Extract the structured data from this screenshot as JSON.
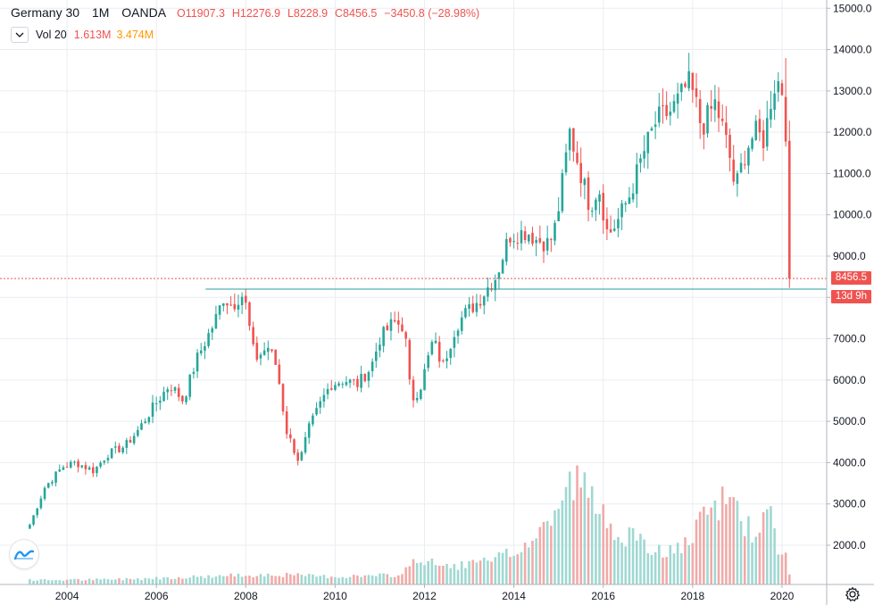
{
  "legend": {
    "symbol": "Germany 30",
    "interval": "1M",
    "source": "OANDA",
    "open": "O11907.3",
    "high": "H12276.9",
    "low": "L8228.9",
    "close": "C8456.5",
    "change": "−3450.8 (−28.98%)"
  },
  "volume_legend": {
    "label": "Vol 20",
    "value": "1.613M",
    "ma": "3.474M"
  },
  "price_tag": "8456.5",
  "countdown_tag": "13d 9h",
  "colors": {
    "up": "#26a69a",
    "down": "#ef5350",
    "up_volume": "#9fd8d2",
    "down_volume": "#f0aaa8",
    "grid": "#eaedf1",
    "support_line": "#2a9d9a"
  },
  "icons": [
    "chevron-down-icon",
    "tradingview-logo-icon",
    "gear-icon"
  ],
  "chart_data": {
    "type": "candlestick",
    "title": "Germany 30 · 1M · OANDA",
    "y_ticks": [
      2000,
      3000,
      4000,
      5000,
      6000,
      7000,
      8000,
      9000,
      10000,
      11000,
      12000,
      13000,
      14000,
      15000
    ],
    "y_tick_labels": [
      "2000.0",
      "3000.0",
      "4000.0",
      "5000.0",
      "6000.0",
      "7000.0",
      "8000.0",
      "9000.0",
      "10000.0",
      "11000.0",
      "12000.0",
      "13000.0",
      "14000.0",
      "15000.0"
    ],
    "x_tick_labels": [
      "2004",
      "2006",
      "2008",
      "2010",
      "2012",
      "2014",
      "2016",
      "2018",
      "2020"
    ],
    "x_tick_years": [
      2004,
      2006,
      2008,
      2010,
      2012,
      2014,
      2016,
      2018,
      2020
    ],
    "ylim": [
      1050,
      15200
    ],
    "xlim": [
      2002.5,
      2021.0
    ],
    "horizontal_line": 8200,
    "last_price": 8456.5,
    "volume_axis_max_million": 23,
    "series_start": [
      2003,
      3
    ],
    "series_end": [
      2020,
      3
    ],
    "close_anchors": [
      [
        2003.17,
        2500
      ],
      [
        2003.5,
        3400
      ],
      [
        2003.9,
        3900
      ],
      [
        2004.2,
        4000
      ],
      [
        2004.6,
        3800
      ],
      [
        2004.9,
        4200
      ],
      [
        2005.3,
        4400
      ],
      [
        2005.6,
        4800
      ],
      [
        2005.9,
        5300
      ],
      [
        2006.3,
        5900
      ],
      [
        2006.45,
        5700
      ],
      [
        2006.6,
        5500
      ],
      [
        2006.9,
        6500
      ],
      [
        2007.3,
        7400
      ],
      [
        2007.5,
        8000
      ],
      [
        2007.7,
        7800
      ],
      [
        2007.9,
        8100
      ],
      [
        2008.0,
        7800
      ],
      [
        2008.2,
        6500
      ],
      [
        2008.5,
        6800
      ],
      [
        2008.7,
        6300
      ],
      [
        2008.9,
        4800
      ],
      [
        2009.2,
        4000
      ],
      [
        2009.4,
        4800
      ],
      [
        2009.7,
        5500
      ],
      [
        2009.9,
        5900
      ],
      [
        2010.2,
        6000
      ],
      [
        2010.5,
        5900
      ],
      [
        2010.8,
        6300
      ],
      [
        2011.0,
        7000
      ],
      [
        2011.3,
        7400
      ],
      [
        2011.55,
        7300
      ],
      [
        2011.7,
        5500
      ],
      [
        2011.9,
        5800
      ],
      [
        2012.2,
        7000
      ],
      [
        2012.4,
        6300
      ],
      [
        2012.7,
        7300
      ],
      [
        2012.9,
        7600
      ],
      [
        2013.2,
        7900
      ],
      [
        2013.45,
        8300
      ],
      [
        2013.6,
        8500
      ],
      [
        2013.9,
        9500
      ],
      [
        2014.3,
        9600
      ],
      [
        2014.5,
        9400
      ],
      [
        2014.8,
        9300
      ],
      [
        2014.95,
        9800
      ],
      [
        2015.25,
        12000
      ],
      [
        2015.45,
        11200
      ],
      [
        2015.7,
        10200
      ],
      [
        2015.9,
        10700
      ],
      [
        2016.1,
        9500
      ],
      [
        2016.3,
        9800
      ],
      [
        2016.6,
        10500
      ],
      [
        2016.9,
        11500
      ],
      [
        2017.2,
        12300
      ],
      [
        2017.5,
        12500
      ],
      [
        2017.7,
        12800
      ],
      [
        2017.9,
        13200
      ],
      [
        2018.05,
        12800
      ],
      [
        2018.2,
        12100
      ],
      [
        2018.5,
        12700
      ],
      [
        2018.7,
        12000
      ],
      [
        2018.85,
        11300
      ],
      [
        2018.95,
        10600
      ],
      [
        2019.2,
        11600
      ],
      [
        2019.4,
        12000
      ],
      [
        2019.6,
        11800
      ],
      [
        2019.8,
        13100
      ],
      [
        2019.95,
        13250
      ],
      [
        2020.0,
        12900
      ],
      [
        2020.08,
        11900
      ],
      [
        2020.17,
        8456.5
      ]
    ],
    "volume_anchors_million": [
      [
        2003.2,
        0.6
      ],
      [
        2005.0,
        0.7
      ],
      [
        2007.0,
        1.1
      ],
      [
        2008.5,
        1.4
      ],
      [
        2010.0,
        1.1
      ],
      [
        2011.5,
        1.3
      ],
      [
        2011.7,
        3.5
      ],
      [
        2012.5,
        2.5
      ],
      [
        2013.5,
        3.2
      ],
      [
        2014.0,
        4.5
      ],
      [
        2014.5,
        6.5
      ],
      [
        2015.0,
        11
      ],
      [
        2015.4,
        15
      ],
      [
        2015.9,
        10
      ],
      [
        2016.5,
        7
      ],
      [
        2017.0,
        5
      ],
      [
        2017.6,
        4.5
      ],
      [
        2018.0,
        6.5
      ],
      [
        2018.3,
        9.5
      ],
      [
        2018.9,
        12.5
      ],
      [
        2019.3,
        7
      ],
      [
        2019.7,
        10
      ],
      [
        2020.0,
        3.5
      ],
      [
        2020.1,
        4
      ],
      [
        2020.17,
        1.6
      ]
    ]
  }
}
